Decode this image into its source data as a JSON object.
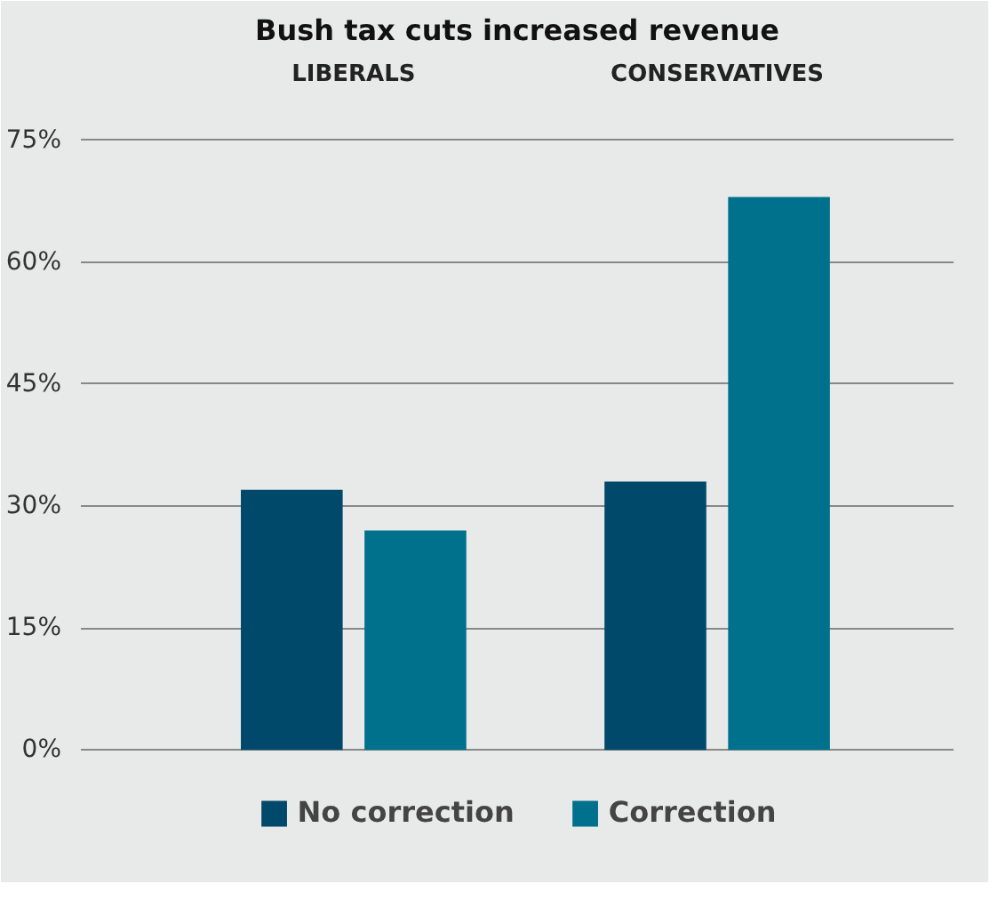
{
  "chart_data": {
    "type": "bar",
    "title": "Bush tax cuts increased revenue",
    "categories": [
      "LIBERALS",
      "CONSERVATIVES"
    ],
    "series": [
      {
        "name": "No correction",
        "color": "#00496a",
        "values": [
          32,
          33
        ]
      },
      {
        "name": "Correction",
        "color": "#00718d",
        "values": [
          27,
          68
        ]
      }
    ],
    "ylim": [
      -12,
      79
    ],
    "yticks": [
      {
        "value": 0,
        "label": "0%"
      },
      {
        "value": 15,
        "label": "15%"
      },
      {
        "value": 30,
        "label": "30%"
      },
      {
        "value": 45,
        "label": "45%"
      },
      {
        "value": 60,
        "label": "60%"
      },
      {
        "value": 75,
        "label": "75%"
      }
    ],
    "grid": "y",
    "legend": "bottom"
  }
}
